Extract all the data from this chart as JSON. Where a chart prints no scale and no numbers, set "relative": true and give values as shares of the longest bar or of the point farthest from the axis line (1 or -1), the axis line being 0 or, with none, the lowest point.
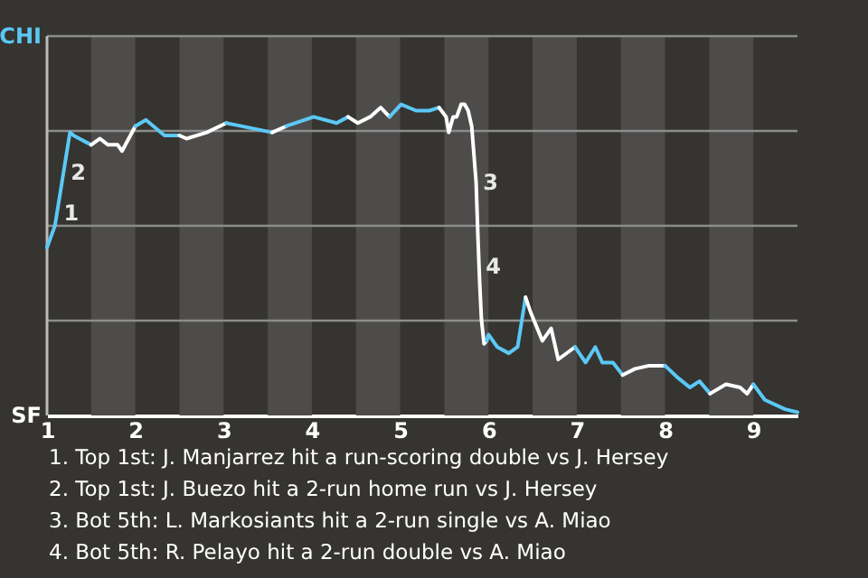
{
  "chart_data": {
    "type": "line",
    "relative": true,
    "series": [
      {
        "color": "#5bc8f5",
        "x": [
          1.0,
          1.09,
          1.26,
          1.3,
          1.5
        ],
        "values": [
          0.54,
          0.61,
          0.91,
          0.9,
          0.87
        ]
      },
      {
        "color": "#ffffff",
        "x": [
          1.5,
          1.6,
          1.69,
          1.8,
          1.85,
          2.0
        ],
        "values": [
          0.87,
          0.89,
          0.87,
          0.87,
          0.85,
          0.93
        ]
      },
      {
        "color": "#5bc8f5",
        "x": [
          2.0,
          2.12,
          2.33,
          2.5
        ],
        "values": [
          0.93,
          0.95,
          0.9,
          0.9
        ]
      },
      {
        "color": "#ffffff",
        "x": [
          2.5,
          2.58,
          2.81,
          3.03
        ],
        "values": [
          0.9,
          0.89,
          0.91,
          0.94
        ]
      },
      {
        "color": "#5bc8f5",
        "x": [
          3.03,
          3.55
        ],
        "values": [
          0.94,
          0.91
        ]
      },
      {
        "color": "#ffffff",
        "x": [
          3.55,
          3.71
        ],
        "values": [
          0.91,
          0.93
        ]
      },
      {
        "color": "#5bc8f5",
        "x": [
          3.71,
          4.02,
          4.28,
          4.41
        ],
        "values": [
          0.93,
          0.96,
          0.94,
          0.96
        ]
      },
      {
        "color": "#ffffff",
        "x": [
          4.41,
          4.52,
          4.66,
          4.78,
          4.88
        ],
        "values": [
          0.96,
          0.94,
          0.96,
          0.99,
          0.96
        ]
      },
      {
        "color": "#5bc8f5",
        "x": [
          4.88,
          5.01,
          5.18,
          5.33,
          5.44
        ],
        "values": [
          0.96,
          1,
          0.98,
          0.98,
          0.99
        ]
      },
      {
        "color": "#ffffff",
        "x": [
          5.44,
          5.52,
          5.55,
          5.6,
          5.64,
          5.69,
          5.73,
          5.77,
          5.81,
          5.86,
          5.88,
          5.9,
          5.92,
          5.95,
          5.98
        ],
        "values": [
          0.99,
          0.96,
          0.91,
          0.96,
          0.96,
          1,
          1,
          0.98,
          0.93,
          0.75,
          0.58,
          0.43,
          0.31,
          0.23,
          0.24
        ]
      },
      {
        "color": "#5bc8f5",
        "x": [
          5.98,
          6.0,
          6.1,
          6.23,
          6.33,
          6.42
        ],
        "values": [
          0.24,
          0.26,
          0.22,
          0.2,
          0.22,
          0.38
        ]
      },
      {
        "color": "#ffffff",
        "x": [
          6.42,
          6.48,
          6.61,
          6.71,
          6.79,
          6.98
        ],
        "values": [
          0.38,
          0.33,
          0.24,
          0.28,
          0.18,
          0.22
        ]
      },
      {
        "color": "#5bc8f5",
        "x": [
          6.98,
          7.1,
          7.21,
          7.29,
          7.41,
          7.52
        ],
        "values": [
          0.22,
          0.17,
          0.22,
          0.17,
          0.17,
          0.13
        ]
      },
      {
        "color": "#ffffff",
        "x": [
          7.52,
          7.66,
          7.82,
          8.0
        ],
        "values": [
          0.13,
          0.15,
          0.16,
          0.16
        ]
      },
      {
        "color": "#5bc8f5",
        "x": [
          8.0,
          8.15,
          8.28,
          8.39,
          8.51
        ],
        "values": [
          0.16,
          0.12,
          0.09,
          0.11,
          0.07
        ]
      },
      {
        "color": "#ffffff",
        "x": [
          8.51,
          8.69,
          8.85,
          8.93,
          9.0
        ],
        "values": [
          0.07,
          0.1,
          0.09,
          0.07,
          0.1
        ]
      },
      {
        "color": "#5bc8f5",
        "x": [
          9.0,
          9.13,
          9.36,
          9.5
        ],
        "values": [
          0.1,
          0.05,
          0.02,
          0.01
        ]
      }
    ],
    "xlim": [
      1,
      9.5
    ],
    "xticks": [
      1,
      2,
      3,
      4,
      5,
      6,
      7,
      8,
      9
    ],
    "grid": "y",
    "marker": "none",
    "bands": [
      {
        "axis": "x",
        "from": 1.5,
        "to": 2,
        "color": "#4d4c4a"
      },
      {
        "axis": "x",
        "from": 2.5,
        "to": 3,
        "color": "#4d4c4a"
      },
      {
        "axis": "x",
        "from": 3.5,
        "to": 4,
        "color": "#4d4c4a"
      },
      {
        "axis": "x",
        "from": 4.5,
        "to": 5,
        "color": "#4d4c4a"
      },
      {
        "axis": "x",
        "from": 5.5,
        "to": 6,
        "color": "#4d4c4a"
      },
      {
        "axis": "x",
        "from": 6.5,
        "to": 7,
        "color": "#4d4c4a"
      },
      {
        "axis": "x",
        "from": 7.5,
        "to": 8,
        "color": "#4d4c4a"
      },
      {
        "axis": "x",
        "from": 8.5,
        "to": 9,
        "color": "#4d4c4a"
      }
    ],
    "annotations": [
      {
        "text": "1",
        "x": 1.11,
        "y": 0.65
      },
      {
        "text": "2",
        "x": 1.19,
        "y": 0.78
      },
      {
        "text": "3",
        "x": 5.86,
        "y": 0.75
      },
      {
        "text": "4",
        "x": 5.89,
        "y": 0.48
      },
      "CHI",
      "SF",
      "1. Top 1st: J. Manjarrez hit a run-scoring double vs J. Hersey",
      "2. Top 1st: J. Buezo hit a 2-run home run vs J. Hersey",
      "3. Bot 5th: L. Markosiants hit a 2-run single vs A. Miao",
      "4. Bot 5th: R. Pelayo hit a 2-run double vs A. Miao"
    ]
  }
}
